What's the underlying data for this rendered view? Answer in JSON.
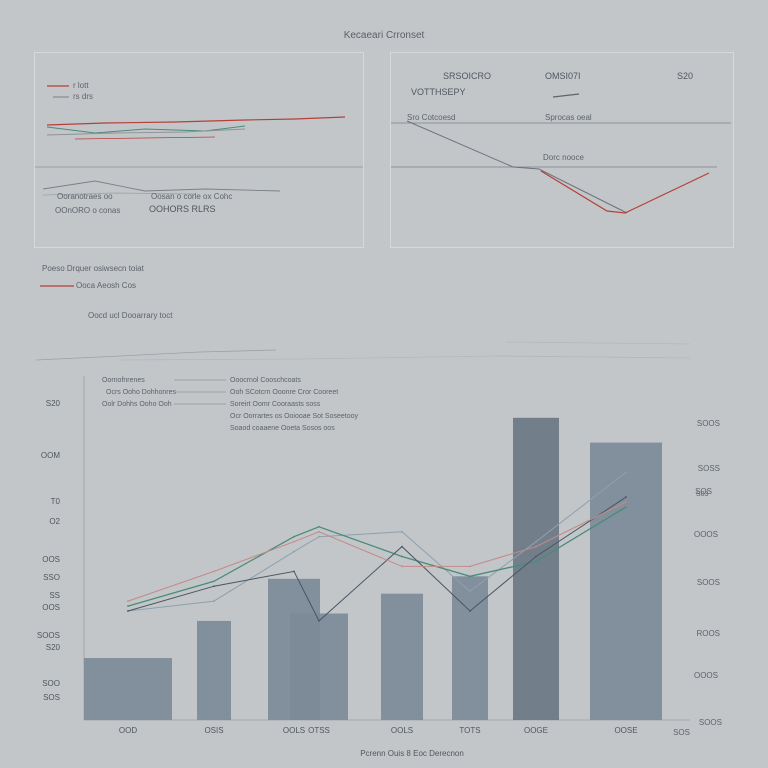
{
  "title": "Kecaeari Crronset",
  "panel_left": {
    "legend": [
      "r lott",
      "rs drs"
    ],
    "label_a": "Ooranotraes oo",
    "label_b": "Oosan o corle ox Cohc",
    "label_c": "OOnORO o conas",
    "label_d": "OOHORS RLRS"
  },
  "panel_right": {
    "header_a": "SRSOICRO",
    "header_b": "OMSI07I",
    "header_c": "S20",
    "subheader": "VOTTHSEPY",
    "label_a": "Sro Cotcoesd",
    "label_b": "Sprocas oeal",
    "label_c": "Dorc nooce"
  },
  "middle": {
    "caption_a": "Poeso Drquer osiwsecn toiat",
    "caption_b": "Ooca Aeosh Cos",
    "caption_c": "Oocd ucl Dooarrary toct"
  },
  "chart_data": {
    "type": "bar",
    "title": "",
    "xlabel": "Pcrenn Ouis 8 Eoc Derecnon",
    "ylabel": "",
    "categories": [
      "OOD",
      "OSIS",
      "OOLS",
      "OTSS",
      "OOLS",
      "TOTS",
      "OOGE",
      "OOSE"
    ],
    "values": [
      12.5,
      20,
      28.5,
      21.5,
      25.5,
      29,
      61,
      56
    ],
    "ylim": [
      0,
      65
    ],
    "y_ticks_left": [
      "S20",
      "OOM",
      "T0",
      "O2",
      "OOS",
      "SSO",
      "SS",
      "OOS",
      "SOOS",
      "S20",
      "SOO",
      "SOS"
    ],
    "y_ticks_right": [
      "SOOS",
      "SOSS",
      "SOS",
      "OOOS",
      "SOOS",
      "ROOS",
      "OOOS",
      "SOOS",
      "SOS"
    ],
    "series": [
      {
        "values": [
          22,
          24,
          34,
          37,
          38,
          26,
          36,
          50
        ],
        "color": "#8da0b0"
      },
      {
        "values": [
          23,
          28,
          37,
          39,
          33,
          29,
          32,
          43
        ],
        "color": "#4a8c78"
      },
      {
        "values": [
          22,
          27,
          30,
          20,
          35,
          22,
          33,
          45
        ],
        "color": "#4a5562"
      },
      {
        "values": [
          24,
          30,
          36,
          38,
          31,
          31,
          35,
          44
        ],
        "color": "#c28a86"
      }
    ],
    "annotations": [
      "Oornofnrenes",
      "Ocrs Ooho Dohhonres",
      "Oolr Dohhs Ooho Ooh",
      "Ooocrnol Cooschcoats",
      "Ooh SCotcrn Ooonre Cror Cooreet",
      "Soreirt Oomr Cooraasts soss",
      "Ocr Oorrartes os Ooiooae Sot Soseetooy",
      "Soaod coaaene Ooeta Sosos oos",
      "S03"
    ],
    "grid": false,
    "legend": "none"
  },
  "colors": {
    "background": "#c3c6c9",
    "bar": "#7d8a98",
    "bar_dark": "#6b7886",
    "accent_red": "#b5403a"
  }
}
